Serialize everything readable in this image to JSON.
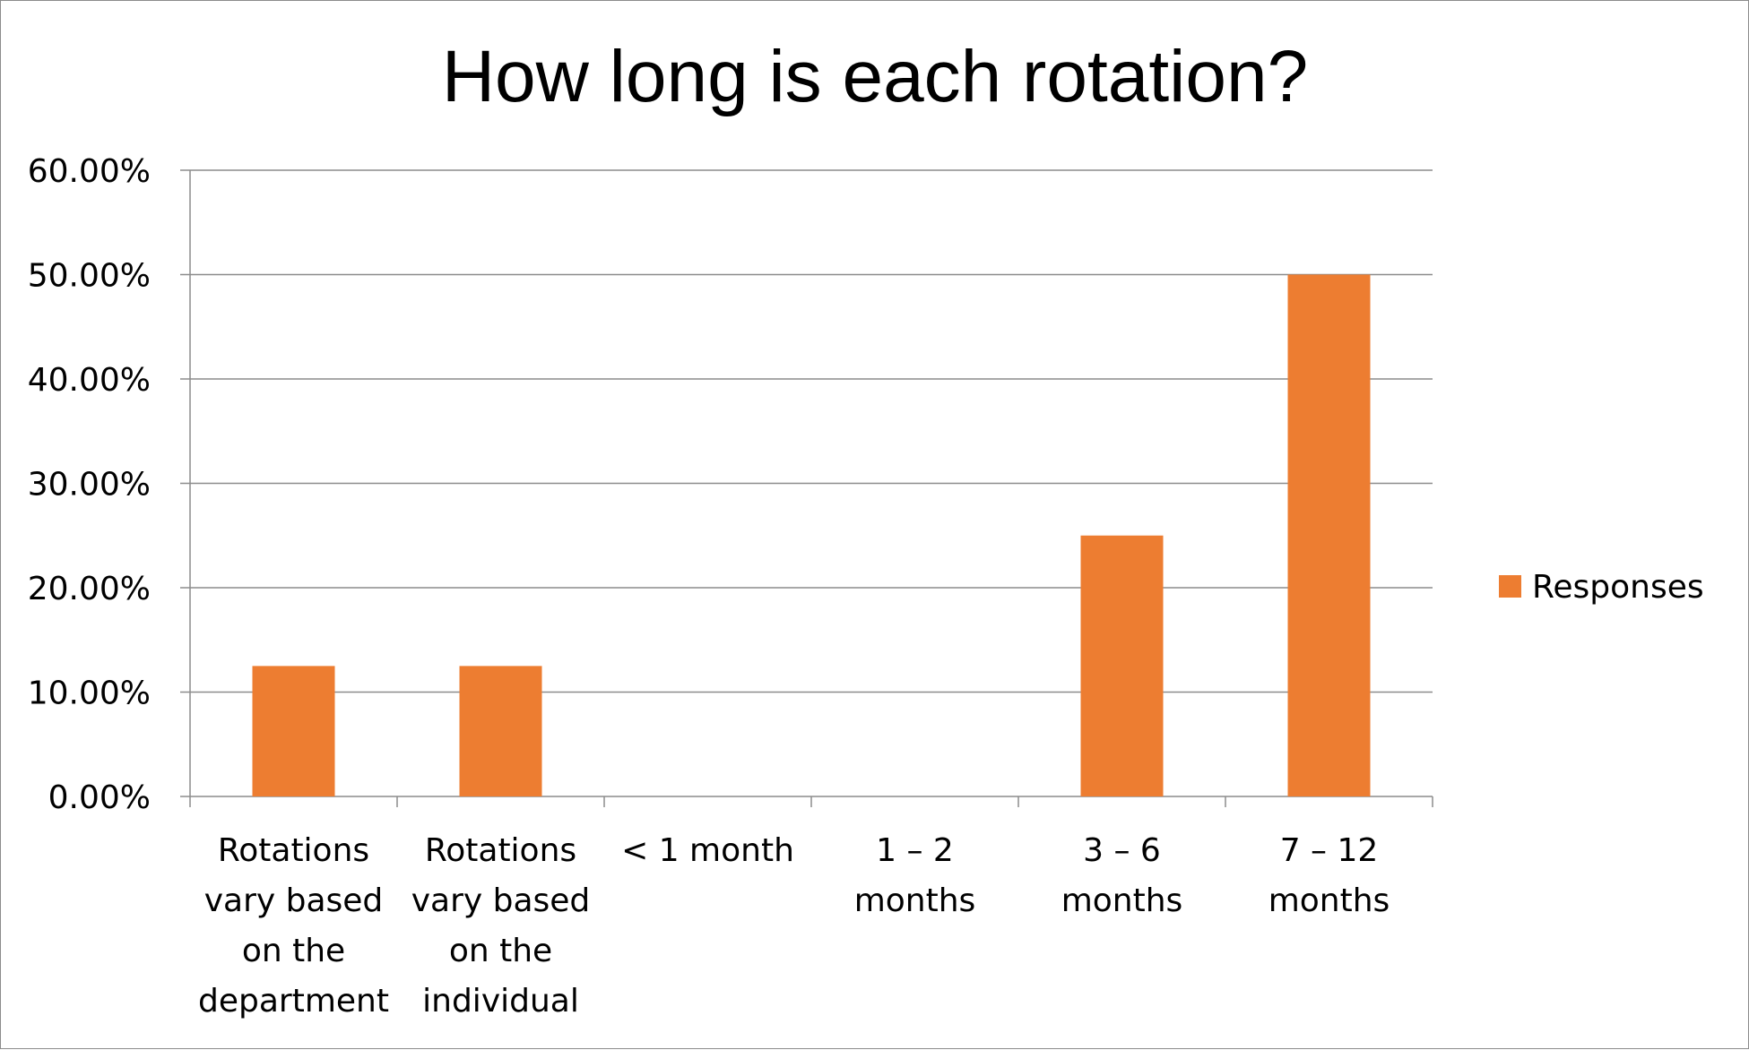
{
  "chart_data": {
    "type": "bar",
    "title": "How long is each rotation?",
    "categories": [
      [
        "Rotations",
        "vary based",
        "on the",
        "department"
      ],
      [
        "Rotations",
        "vary based",
        "on the",
        "individual"
      ],
      [
        "< 1 month"
      ],
      [
        "1 – 2",
        "months"
      ],
      [
        "3 – 6",
        "months"
      ],
      [
        "7 – 12",
        "months"
      ]
    ],
    "series": [
      {
        "name": "Responses",
        "values": [
          0.125,
          0.125,
          0,
          0,
          0.25,
          0.5
        ],
        "color": "#ED7D31"
      }
    ],
    "yticks": [
      "0.00%",
      "10.00%",
      "20.00%",
      "30.00%",
      "40.00%",
      "50.00%",
      "60.00%"
    ],
    "ylim": [
      0,
      0.6
    ],
    "grid": true,
    "legend_position": "right"
  }
}
